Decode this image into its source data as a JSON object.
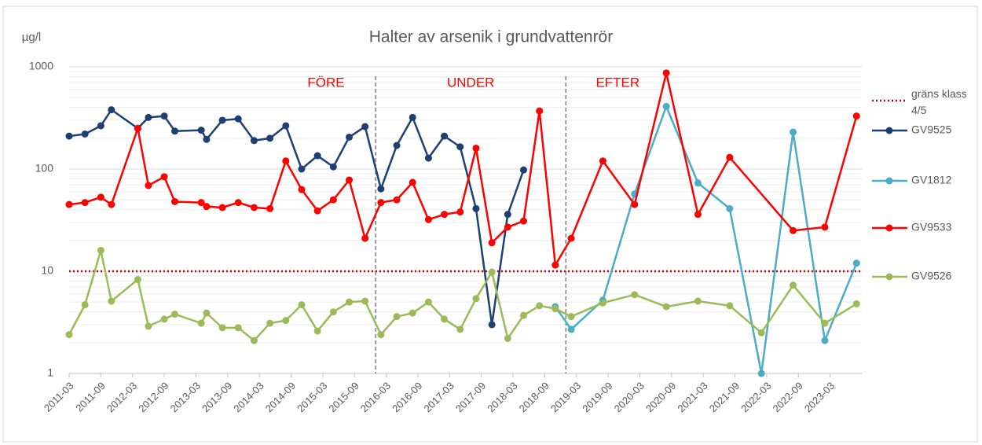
{
  "chart_data": {
    "type": "line",
    "title": "Halter av arsenik i grundvattenrör",
    "y_label": "µg/l",
    "log_scale": true,
    "ylim": [
      1,
      1000
    ],
    "yticks": [
      1,
      10,
      100,
      1000
    ],
    "xlim": [
      "2011-03",
      "2023-09"
    ],
    "xticks": [
      "2011-03",
      "2011-09",
      "2012-03",
      "2012-09",
      "2013-03",
      "2013-09",
      "2014-03",
      "2014-09",
      "2015-03",
      "2015-09",
      "2016-03",
      "2016-09",
      "2017-03",
      "2017-09",
      "2018-03",
      "2018-09",
      "2019-03",
      "2019-09",
      "2020-03",
      "2020-09",
      "2021-03",
      "2021-09",
      "2022-03",
      "2022-09",
      "2023-03"
    ],
    "dividers": [
      "2016-01",
      "2019-01"
    ],
    "annotations": [
      "FÖRE",
      "UNDER",
      "EFTER"
    ],
    "annotation_color": "#ff0000",
    "threshold": {
      "name": "gräns klass 4/5",
      "value": 10,
      "color": "#c00000"
    },
    "legend": "right",
    "series": [
      {
        "name": "GV9525",
        "color": "#1f3f73",
        "x": [
          "2011-03",
          "2011-06",
          "2011-09",
          "2011-11",
          "2012-04",
          "2012-06",
          "2012-09",
          "2012-11",
          "2013-04",
          "2013-05",
          "2013-08",
          "2013-11",
          "2014-02",
          "2014-05",
          "2014-08",
          "2014-11",
          "2015-02",
          "2015-05",
          "2015-08",
          "2015-11",
          "2016-02",
          "2016-05",
          "2016-08",
          "2016-11",
          "2017-02",
          "2017-05",
          "2017-08",
          "2017-11",
          "2018-02",
          "2018-05"
        ],
        "values": [
          210,
          220,
          265,
          380,
          250,
          320,
          330,
          235,
          240,
          195,
          300,
          310,
          190,
          200,
          265,
          100,
          135,
          105,
          205,
          260,
          64,
          170,
          320,
          128,
          210,
          165,
          41,
          3,
          36,
          98
        ]
      },
      {
        "name": "GV1812",
        "color": "#4bacc6",
        "x": [
          "2018-11",
          "2019-02",
          "2019-08",
          "2020-02",
          "2020-08",
          "2021-02",
          "2021-08",
          "2022-02",
          "2022-08",
          "2023-02",
          "2023-08"
        ],
        "values": [
          4.5,
          2.7,
          5.2,
          57,
          410,
          73,
          41,
          1,
          230,
          2.1,
          12
        ]
      },
      {
        "name": "GV9533",
        "color": "#ff0000",
        "x": [
          "2011-03",
          "2011-06",
          "2011-09",
          "2011-11",
          "2012-04",
          "2012-06",
          "2012-09",
          "2012-11",
          "2013-04",
          "2013-05",
          "2013-08",
          "2013-11",
          "2014-02",
          "2014-05",
          "2014-08",
          "2014-11",
          "2015-02",
          "2015-05",
          "2015-08",
          "2015-11",
          "2016-02",
          "2016-05",
          "2016-08",
          "2016-11",
          "2017-02",
          "2017-05",
          "2017-08",
          "2017-11",
          "2018-02",
          "2018-05",
          "2018-08",
          "2018-11",
          "2019-02",
          "2019-08",
          "2020-02",
          "2020-08",
          "2021-02",
          "2021-08",
          "2022-08",
          "2023-02",
          "2023-08"
        ],
        "values": [
          45,
          47,
          53,
          45,
          250,
          69,
          84,
          48,
          47,
          43,
          42,
          47,
          42,
          41,
          120,
          63,
          39,
          50,
          78,
          21,
          47,
          50,
          74,
          32,
          36,
          38,
          160,
          19,
          27,
          31,
          370,
          11.5,
          21,
          120,
          45,
          870,
          36,
          130,
          25,
          27,
          330
        ]
      },
      {
        "name": "GV9526",
        "color": "#9bbb59",
        "x": [
          "2011-03",
          "2011-06",
          "2011-09",
          "2011-11",
          "2012-04",
          "2012-06",
          "2012-09",
          "2012-11",
          "2013-04",
          "2013-05",
          "2013-08",
          "2013-11",
          "2014-02",
          "2014-05",
          "2014-08",
          "2014-11",
          "2015-02",
          "2015-05",
          "2015-08",
          "2015-11",
          "2016-02",
          "2016-05",
          "2016-08",
          "2016-11",
          "2017-02",
          "2017-05",
          "2017-08",
          "2017-11",
          "2018-02",
          "2018-05",
          "2018-08",
          "2018-11",
          "2019-02",
          "2019-08",
          "2020-02",
          "2020-08",
          "2021-02",
          "2021-08",
          "2022-02",
          "2022-08",
          "2023-02",
          "2023-08"
        ],
        "values": [
          2.4,
          4.7,
          16,
          5.1,
          8.3,
          2.9,
          3.4,
          3.8,
          3.1,
          3.9,
          2.8,
          2.8,
          2.1,
          3.1,
          3.3,
          4.7,
          2.6,
          4,
          5,
          5.1,
          2.4,
          3.6,
          3.9,
          5,
          3.4,
          2.7,
          5.4,
          9.8,
          2.2,
          3.7,
          4.6,
          4.3,
          3.6,
          4.9,
          5.9,
          4.5,
          5.1,
          4.6,
          2.5,
          7.3,
          3.1,
          4.8
        ]
      }
    ]
  }
}
